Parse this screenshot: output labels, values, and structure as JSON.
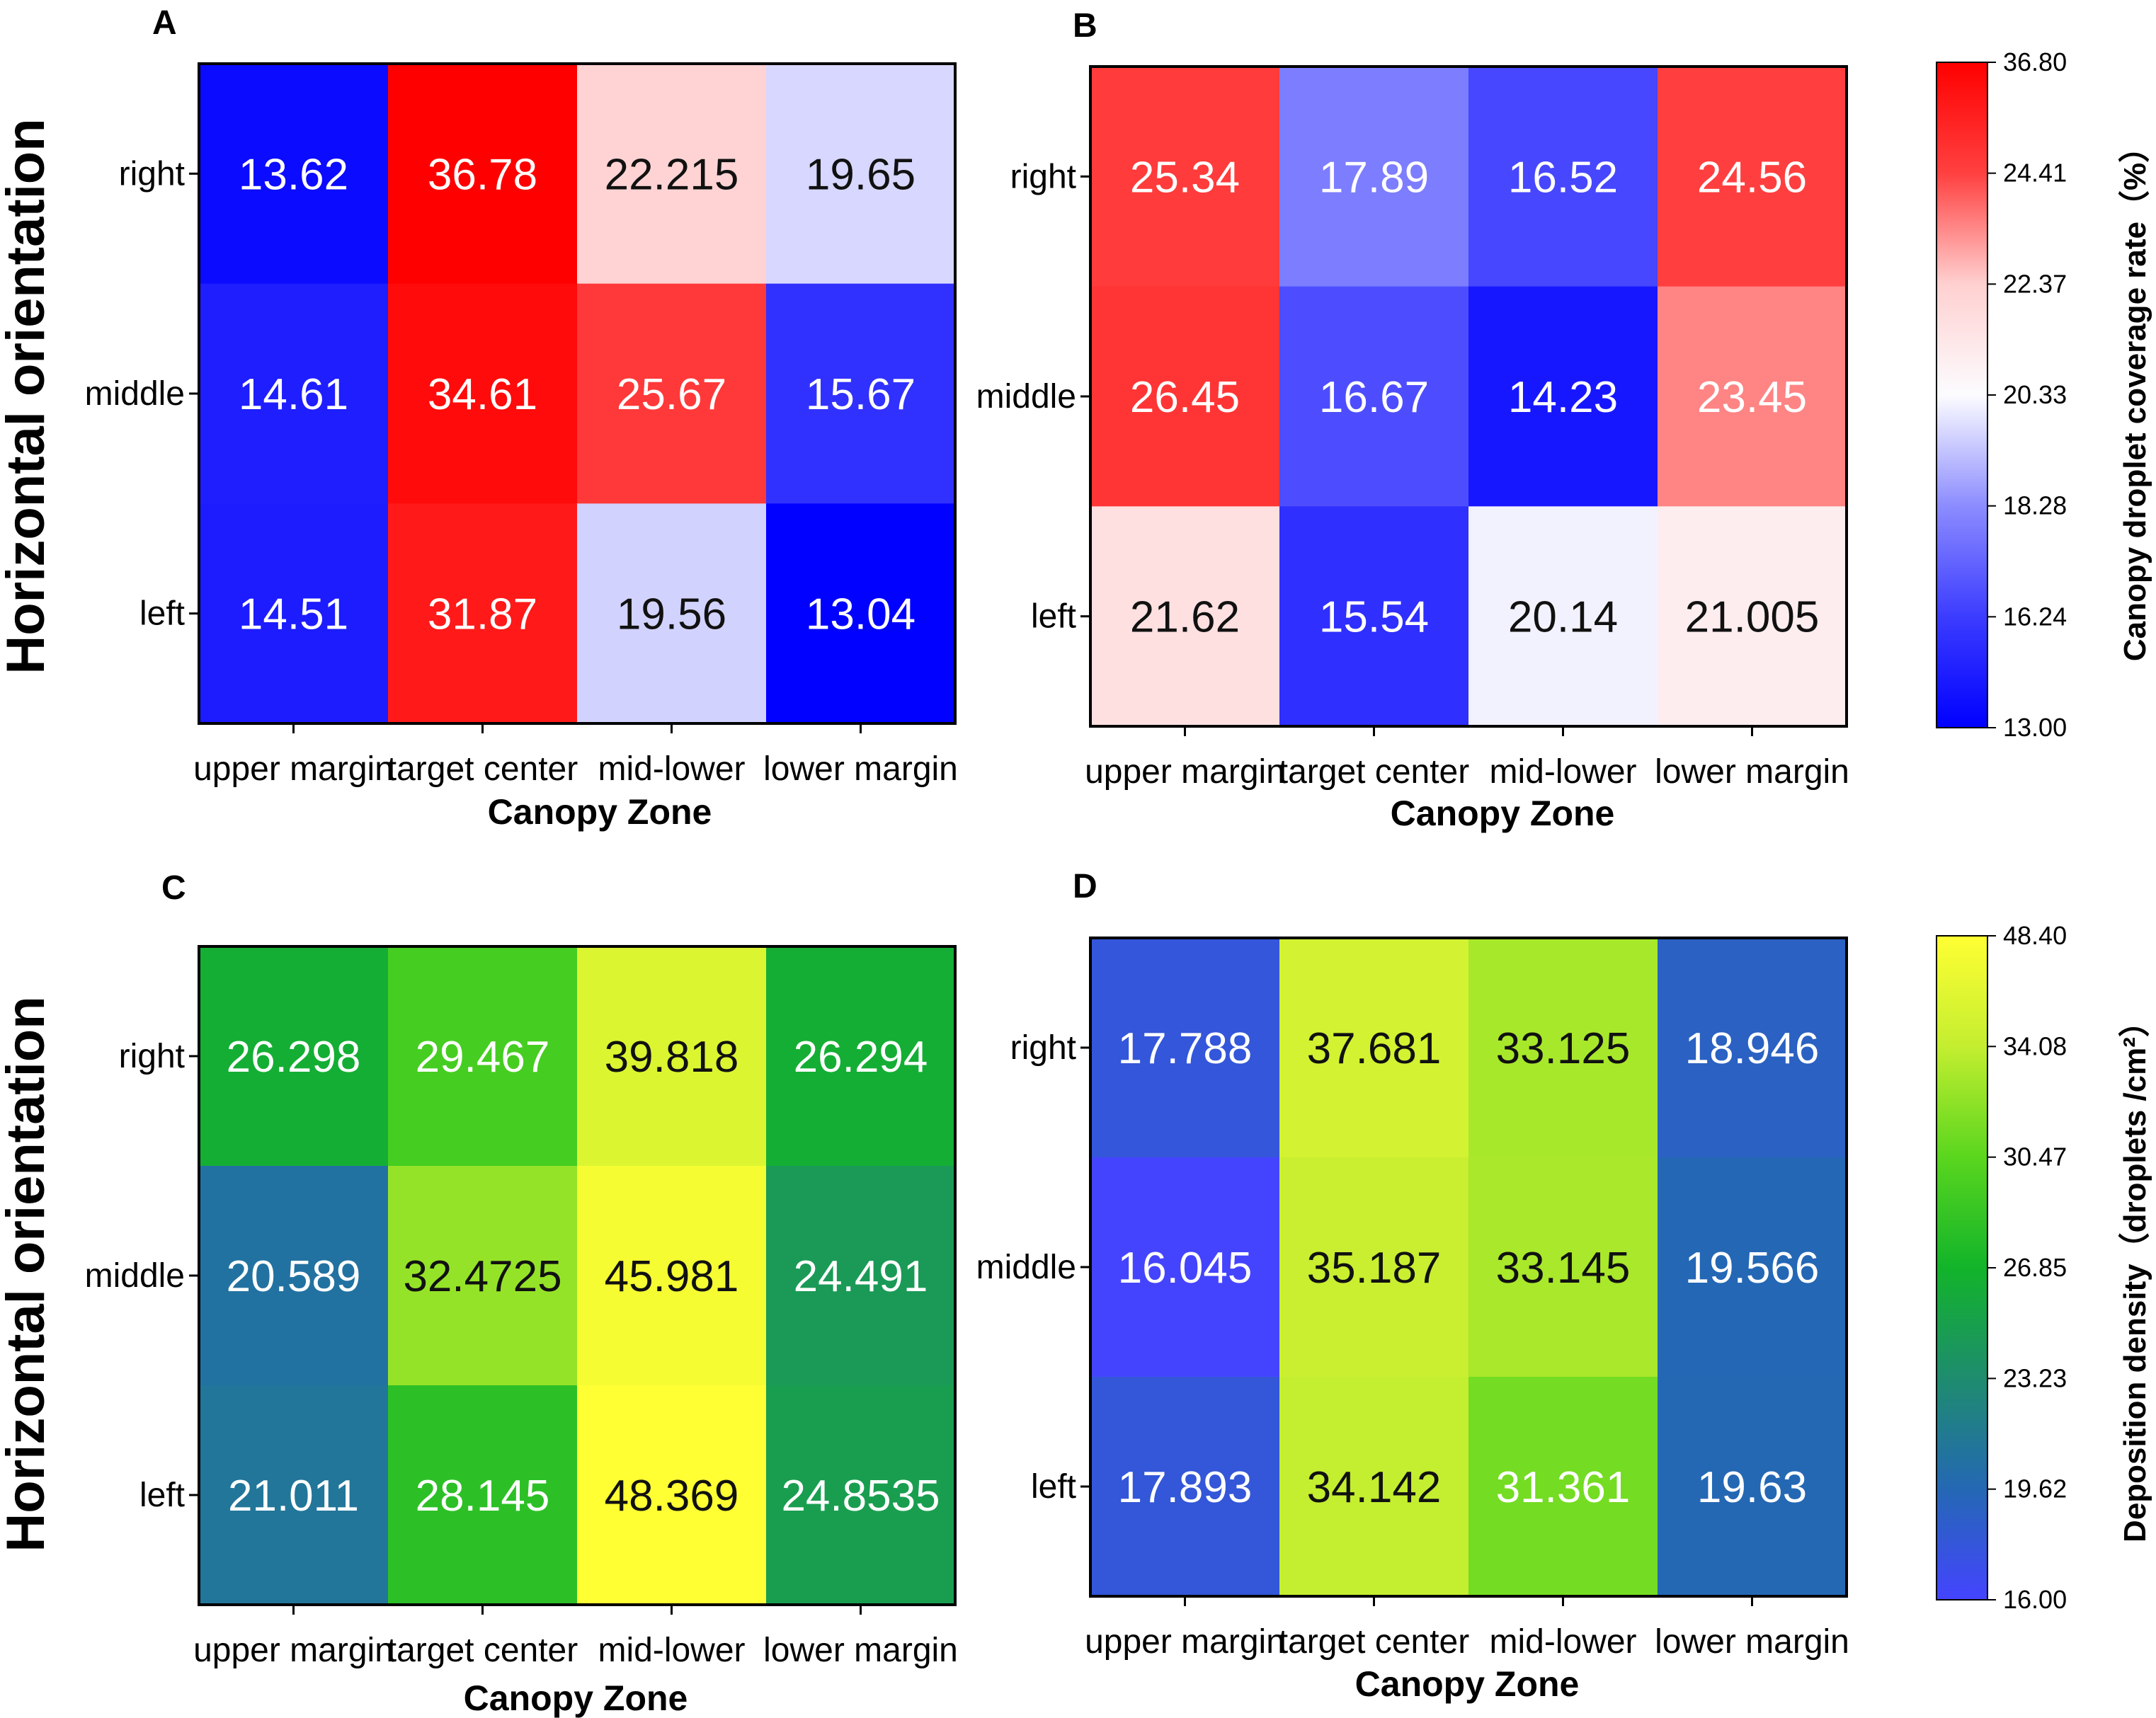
{
  "figure": {
    "y_title": "Horizontal orientation",
    "x_title": "Canopy Zone"
  },
  "chart_data": [
    {
      "type": "heatmap",
      "panel": "A",
      "colormap": "coverage",
      "categories_x": [
        "upper margin",
        "target center",
        "mid-lower",
        "lower margin"
      ],
      "categories_y": [
        "right",
        "middle",
        "left"
      ],
      "values": [
        [
          13.62,
          36.78,
          22.215,
          19.65
        ],
        [
          14.61,
          34.61,
          25.67,
          15.67
        ],
        [
          14.51,
          31.87,
          19.56,
          13.04
        ]
      ],
      "value_labels": [
        [
          "13.62",
          "36.78",
          "22.215",
          "19.65"
        ],
        [
          "14.61",
          "34.61",
          "25.67",
          "15.67"
        ],
        [
          "14.51",
          "31.87",
          "19.56",
          "13.04"
        ]
      ],
      "xlabel": "Canopy Zone",
      "ylabel": "Horizontal orientation"
    },
    {
      "type": "heatmap",
      "panel": "B",
      "colormap": "coverage",
      "categories_x": [
        "upper margin",
        "target center",
        "mid-lower",
        "lower margin"
      ],
      "categories_y": [
        "right",
        "middle",
        "left"
      ],
      "values": [
        [
          25.34,
          17.89,
          16.52,
          24.56
        ],
        [
          26.45,
          16.67,
          14.23,
          23.45
        ],
        [
          21.62,
          15.54,
          20.14,
          21.005
        ]
      ],
      "value_labels": [
        [
          "25.34",
          "17.89",
          "16.52",
          "24.56"
        ],
        [
          "26.45",
          "16.67",
          "14.23",
          "23.45"
        ],
        [
          "21.62",
          "15.54",
          "20.14",
          "21.005"
        ]
      ],
      "xlabel": "Canopy Zone",
      "ylabel": ""
    },
    {
      "type": "heatmap",
      "panel": "C",
      "colormap": "density",
      "categories_x": [
        "upper margin",
        "target center",
        "mid-lower",
        "lower margin"
      ],
      "categories_y": [
        "right",
        "middle",
        "left"
      ],
      "values": [
        [
          26.298,
          29.467,
          39.818,
          26.294
        ],
        [
          20.589,
          32.4725,
          45.981,
          24.491
        ],
        [
          21.011,
          28.145,
          48.369,
          24.8535
        ]
      ],
      "value_labels": [
        [
          "26.298",
          "29.467",
          "39.818",
          "26.294"
        ],
        [
          "20.589",
          "32.4725",
          "45.981",
          "24.491"
        ],
        [
          "21.011",
          "28.145",
          "48.369",
          "24.8535"
        ]
      ],
      "xlabel": "Canopy Zone",
      "ylabel": "Horizontal orientation"
    },
    {
      "type": "heatmap",
      "panel": "D",
      "colormap": "density",
      "categories_x": [
        "upper margin",
        "target center",
        "mid-lower",
        "lower margin"
      ],
      "categories_y": [
        "right",
        "middle",
        "left"
      ],
      "values": [
        [
          17.788,
          37.681,
          33.125,
          18.946
        ],
        [
          16.045,
          35.187,
          33.145,
          19.566
        ],
        [
          17.893,
          34.142,
          31.361,
          19.63
        ]
      ],
      "value_labels": [
        [
          "17.788",
          "37.681",
          "33.125",
          "18.946"
        ],
        [
          "16.045",
          "35.187",
          "33.145",
          "19.566"
        ],
        [
          "17.893",
          "34.142",
          "31.361",
          "19.63"
        ]
      ],
      "xlabel": "Canopy Zone",
      "ylabel": ""
    }
  ],
  "colorbars": {
    "coverage": {
      "title": "Canopy droplet coverage rate（%）",
      "ticks": [
        "36.80",
        "24.41",
        "22.37",
        "20.33",
        "18.28",
        "16.24",
        "13.00"
      ],
      "stops": [
        {
          "value": 13.0,
          "color": "#0000ff"
        },
        {
          "value": 16.24,
          "color": "#3c3cff"
        },
        {
          "value": 18.28,
          "color": "#8c8cff"
        },
        {
          "value": 20.33,
          "color": "#fcfcff"
        },
        {
          "value": 22.37,
          "color": "#ffd0d0"
        },
        {
          "value": 24.41,
          "color": "#ff4040"
        },
        {
          "value": 36.8,
          "color": "#ff0000"
        }
      ]
    },
    "density": {
      "title": "Deposition density（droplets /cm²）",
      "ticks": [
        "48.40",
        "34.08",
        "30.47",
        "26.85",
        "23.23",
        "19.62",
        "16.00"
      ],
      "stops": [
        {
          "value": 16.0,
          "color": "#4444ff"
        },
        {
          "value": 19.62,
          "color": "#2468b4"
        },
        {
          "value": 23.23,
          "color": "#1e8c6e"
        },
        {
          "value": 26.85,
          "color": "#12b42a"
        },
        {
          "value": 30.47,
          "color": "#5ad61e"
        },
        {
          "value": 34.08,
          "color": "#c4ee30"
        },
        {
          "value": 48.4,
          "color": "#ffff33"
        }
      ]
    }
  }
}
